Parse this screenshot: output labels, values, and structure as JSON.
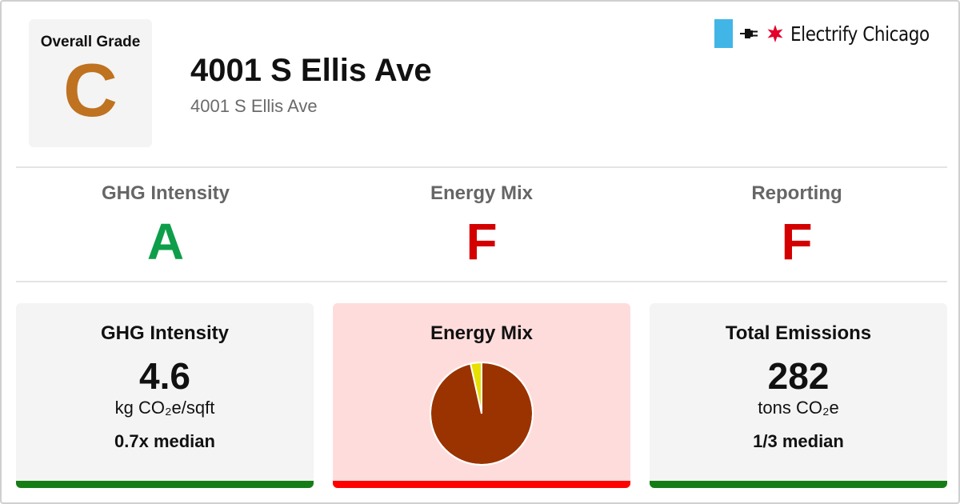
{
  "header": {
    "overall_label": "Overall Grade",
    "overall_grade": "C",
    "title": "4001 S Ellis Ave",
    "subtitle": "4001 S Ellis Ave",
    "brand_name": "Electrify Chicago",
    "brand_icons": [
      "flag-block",
      "plug-icon",
      "star-icon"
    ]
  },
  "grades": [
    {
      "label": "GHG Intensity",
      "grade": "A",
      "color": "#0d9e4a"
    },
    {
      "label": "Energy Mix",
      "grade": "F",
      "color": "#d40000"
    },
    {
      "label": "Reporting",
      "grade": "F",
      "color": "#d40000"
    }
  ],
  "cards": {
    "ghg": {
      "title": "GHG Intensity",
      "value": "4.6",
      "unit": "kg CO₂e/sqft",
      "median": "0.7x median",
      "bar_color": "#167d16",
      "background": "#f4f4f4"
    },
    "mix": {
      "title": "Energy Mix",
      "bar_color": "#ff0000",
      "background": "#ffdcdc"
    },
    "emissions": {
      "title": "Total Emissions",
      "value": "282",
      "unit": "tons CO₂e",
      "median": "1/3 median",
      "bar_color": "#167d16",
      "background": "#f4f4f4"
    }
  },
  "chart_data": {
    "type": "pie",
    "series": [
      {
        "values": [
          96.5,
          3.5
        ],
        "colors": [
          "#9a3300",
          "#e8e000"
        ]
      }
    ]
  },
  "colors": {
    "overall_grade": "#bf7220",
    "brand_blue": "#41b6e6",
    "brand_red": "#e4002b"
  }
}
